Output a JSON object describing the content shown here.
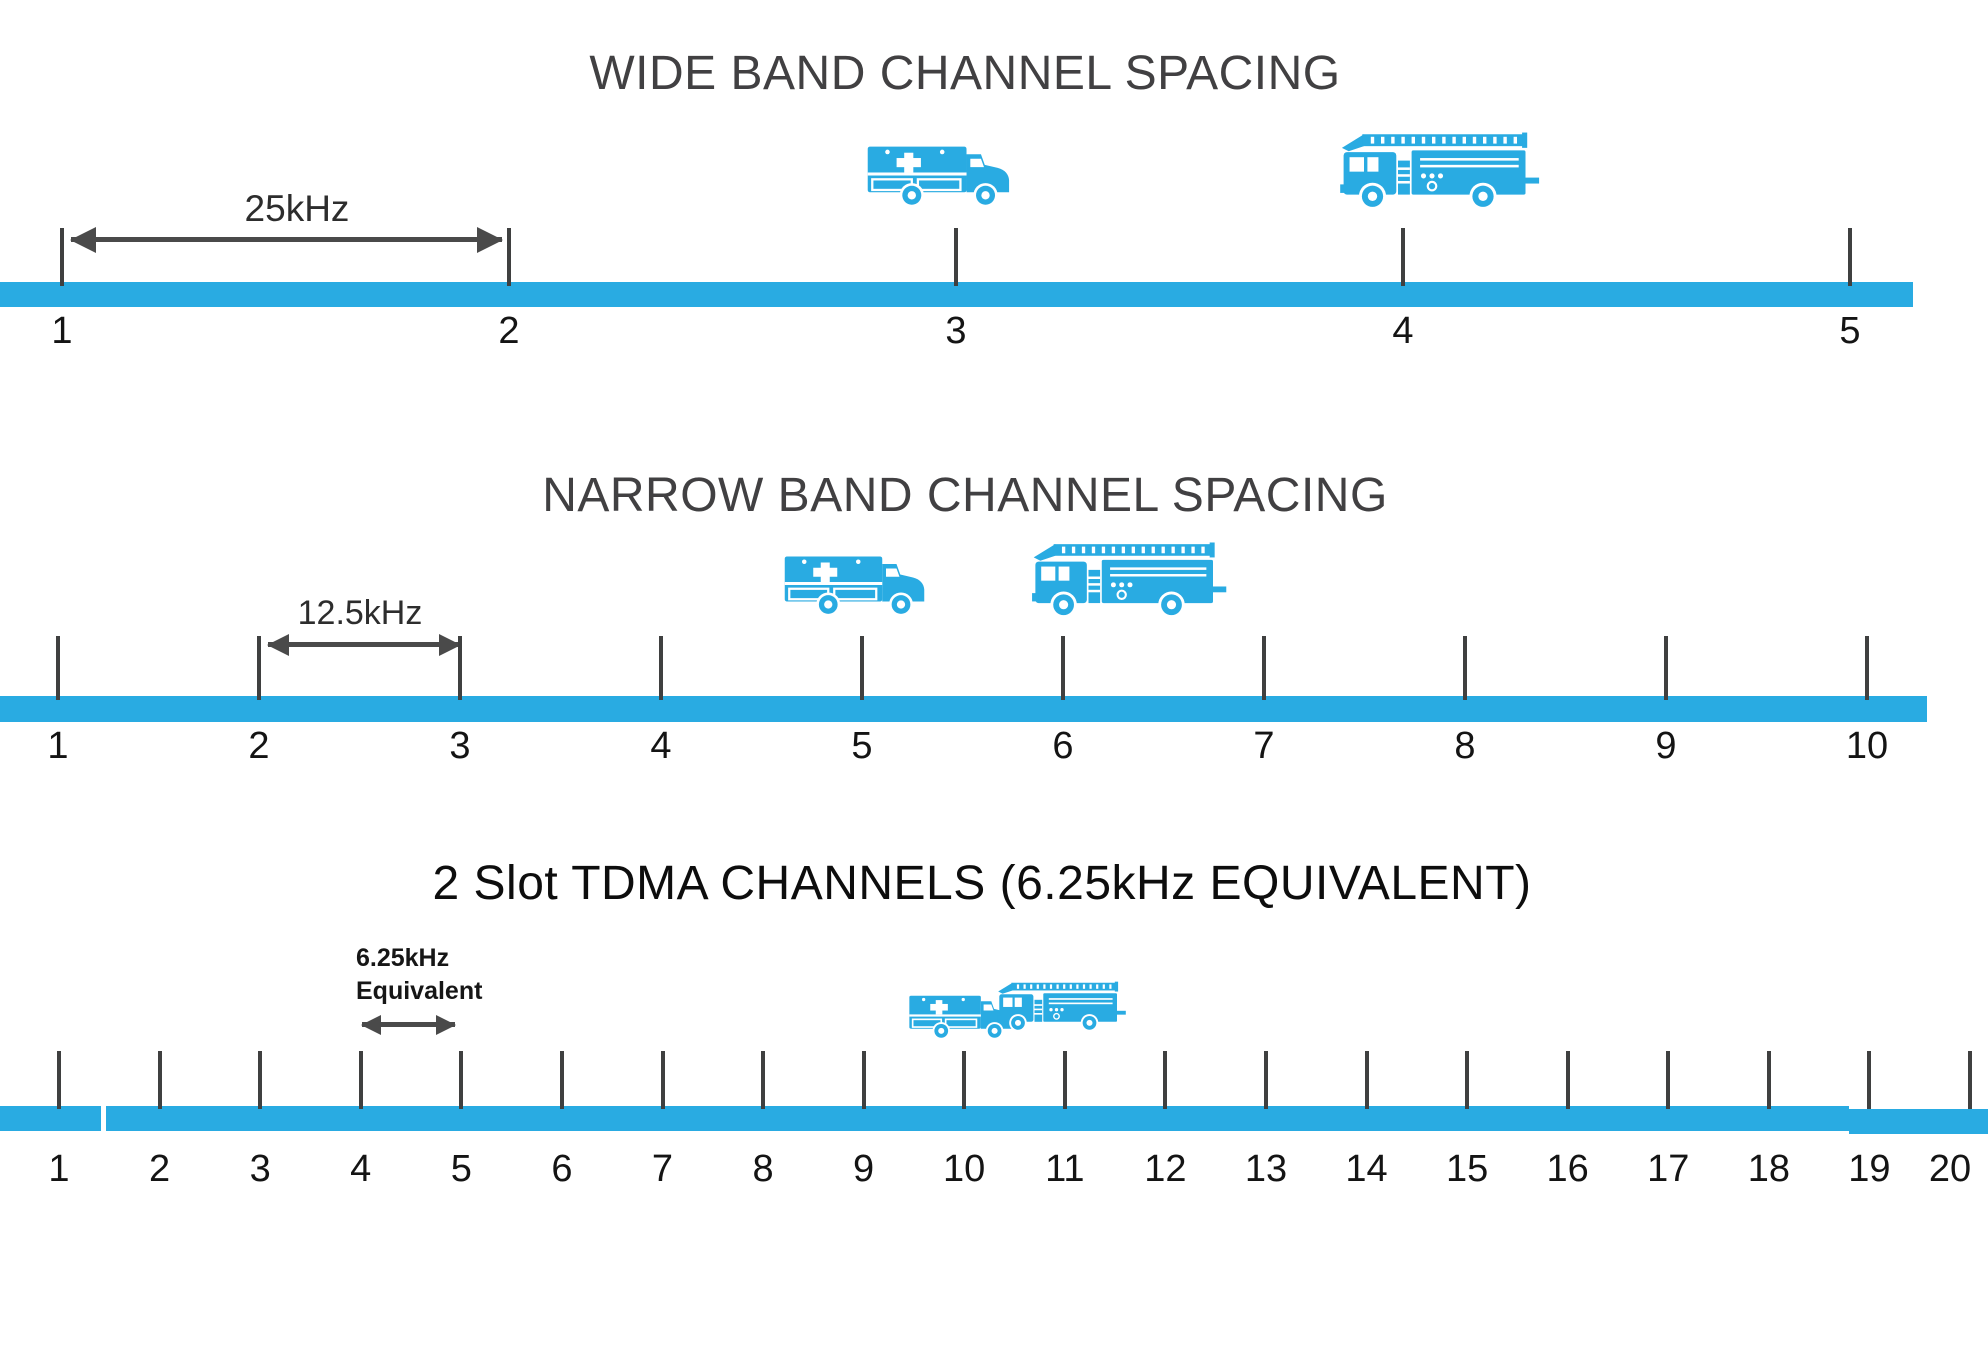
{
  "palette": {
    "accent": "#29ABE2",
    "tick": "#3f4040",
    "arrow": "#4a4a4a",
    "title_gray": "#414042",
    "title_dark": "#0d0d0d",
    "number": "#141414"
  },
  "sections": [
    {
      "id": "wide",
      "title": "WIDE BAND CHANNEL SPACING",
      "spacing_label": "25kHz",
      "channels": [
        "1",
        "2",
        "3",
        "4",
        "5"
      ],
      "vehicles": [
        "ambulance",
        "fire-truck"
      ]
    },
    {
      "id": "narrow",
      "title": "NARROW BAND CHANNEL SPACING",
      "spacing_label": "12.5kHz",
      "channels": [
        "1",
        "2",
        "3",
        "4",
        "5",
        "6",
        "7",
        "8",
        "9",
        "10"
      ],
      "vehicles": [
        "ambulance",
        "fire-truck"
      ]
    },
    {
      "id": "tdma",
      "title": "2 Slot TDMA CHANNELS (6.25kHz EQUIVALENT)",
      "spacing_label": "6.25kHz",
      "spacing_label_line2": "Equivalent",
      "channels": [
        "1",
        "2",
        "3",
        "4",
        "5",
        "6",
        "7",
        "8",
        "9",
        "10",
        "11",
        "12",
        "13",
        "14",
        "15",
        "16",
        "17",
        "18",
        "19",
        "20"
      ],
      "vehicles": [
        "ambulance",
        "fire-truck"
      ]
    }
  ]
}
